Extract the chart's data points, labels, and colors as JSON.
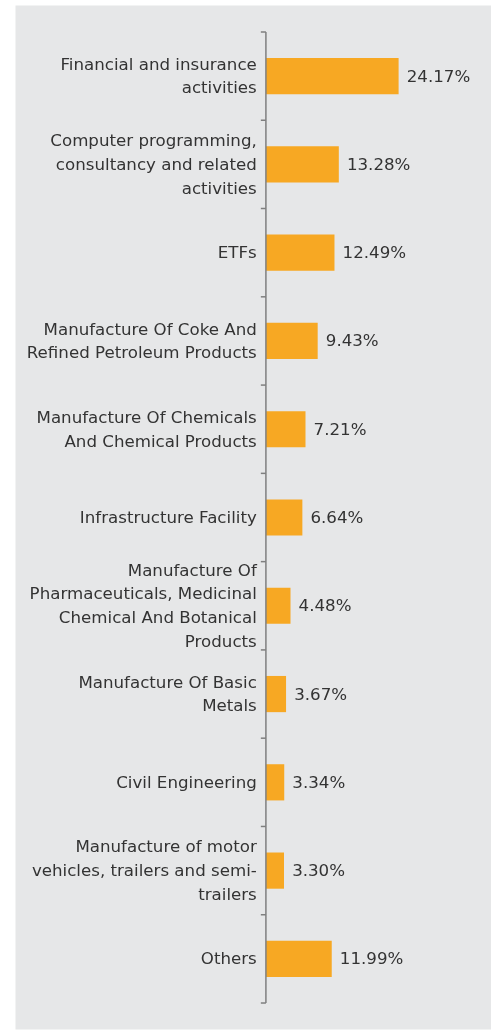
{
  "chart_data": {
    "type": "bar",
    "orientation": "horizontal",
    "color": "#f7a823",
    "categories": [
      "Financial and insurance\nactivities",
      "Computer programming,\nconsultancy and related\nactivities",
      "ETFs",
      "Manufacture Of Coke And\nRefined Petroleum Products",
      "Manufacture Of Chemicals\nAnd Chemical Products",
      "Infrastructure Facility",
      "Manufacture Of\nPharmaceuticals, Medicinal\nChemical And Botanical\nProducts",
      "Manufacture Of Basic\nMetals",
      "Civil Engineering",
      "Manufacture of motor\nvehicles, trailers and semi-\ntrailers",
      "Others"
    ],
    "values": [
      24.17,
      13.28,
      12.49,
      9.43,
      7.21,
      6.64,
      4.48,
      3.67,
      3.34,
      3.3,
      11.99
    ],
    "value_labels": [
      "24.17%",
      "13.28%",
      "12.49%",
      "9.43%",
      "7.21%",
      "6.64%",
      "4.48%",
      "3.67%",
      "3.34%",
      "3.30%",
      "11.99%"
    ]
  }
}
